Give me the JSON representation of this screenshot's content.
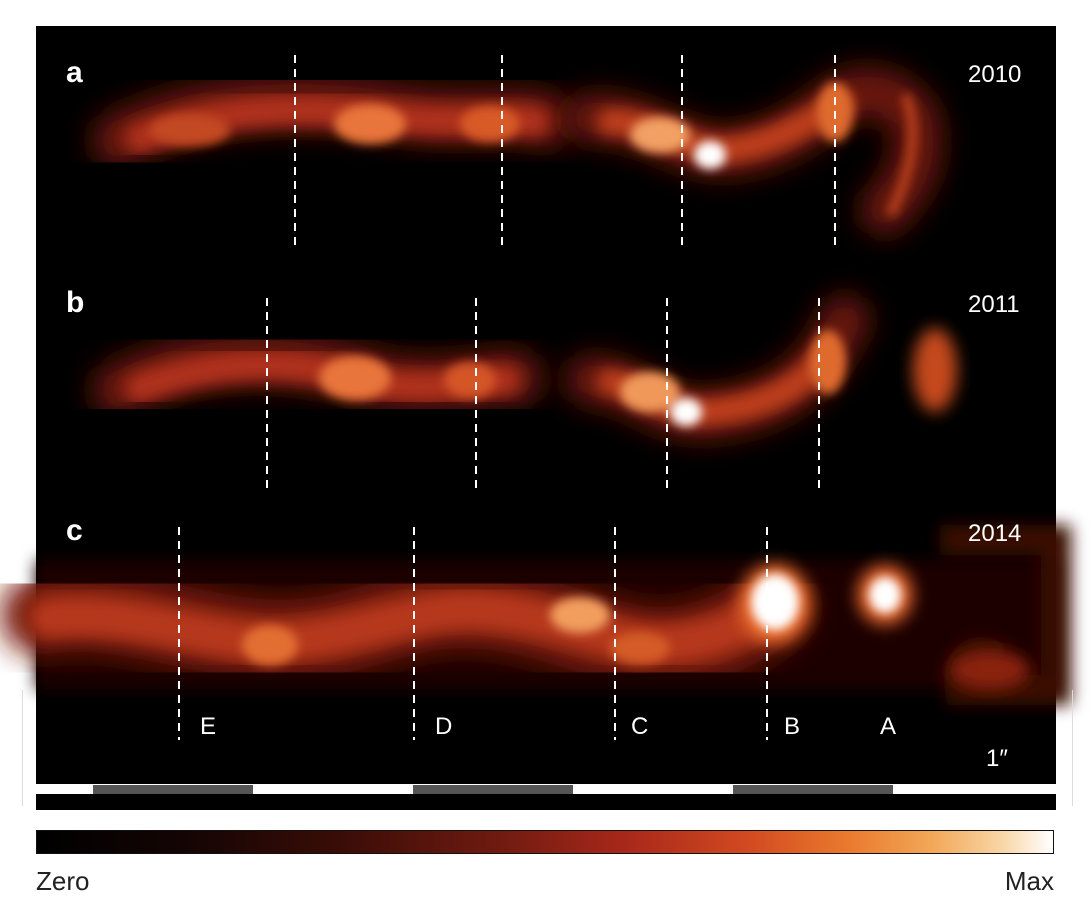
{
  "panels": [
    {
      "letter": "a",
      "year": "2010"
    },
    {
      "letter": "b",
      "year": "2011"
    },
    {
      "letter": "c",
      "year": "2014"
    }
  ],
  "knots": [
    "E",
    "D",
    "C",
    "B",
    "A"
  ],
  "scale_label": "1″",
  "colorbar": {
    "min_label": "Zero",
    "max_label": "Max"
  },
  "colors": {
    "background": "#000000",
    "glow_core": "#ffffff",
    "glow_mid": "#e86a2a",
    "glow_edge": "#7a1a0c"
  }
}
